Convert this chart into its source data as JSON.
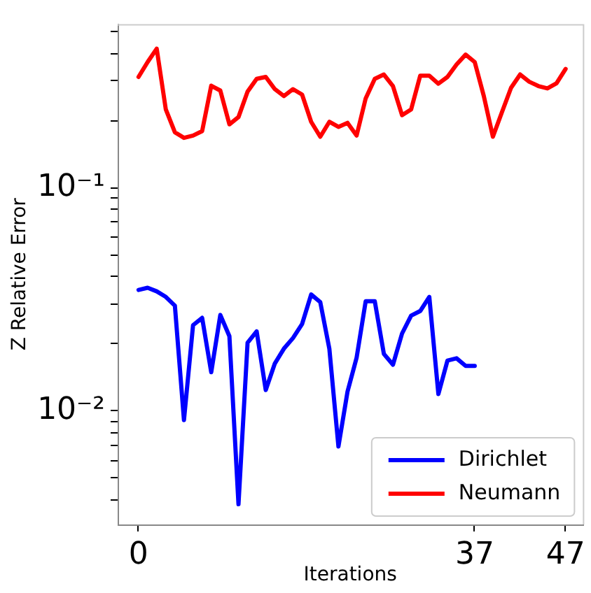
{
  "chart_data": {
    "type": "line",
    "xlabel": "Iterations",
    "ylabel": "Z Relative Error",
    "log": "y",
    "grid": false,
    "legend": "bottom right",
    "marker": "none",
    "line_style": "solid",
    "xlim": [
      -2.3,
      48.9
    ],
    "xticks": [
      0,
      37,
      47
    ],
    "ylim": [
      0.0031,
      0.54
    ],
    "yticks": [
      {
        "value": 0.004,
        "label": null
      },
      {
        "value": 0.005,
        "label": null
      },
      {
        "value": 0.006,
        "label": null
      },
      {
        "value": 0.007,
        "label": null
      },
      {
        "value": 0.008,
        "label": null
      },
      {
        "value": 0.009,
        "label": null
      },
      {
        "value": 0.01,
        "label": "10⁻²"
      },
      {
        "value": 0.02,
        "label": null
      },
      {
        "value": 0.03,
        "label": null
      },
      {
        "value": 0.04,
        "label": null
      },
      {
        "value": 0.05,
        "label": null
      },
      {
        "value": 0.06,
        "label": null
      },
      {
        "value": 0.07,
        "label": null
      },
      {
        "value": 0.08,
        "label": null
      },
      {
        "value": 0.09,
        "label": null
      },
      {
        "value": 0.1,
        "label": "10⁻¹"
      },
      {
        "value": 0.2,
        "label": null
      },
      {
        "value": 0.3,
        "label": null
      },
      {
        "value": 0.4,
        "label": null
      },
      {
        "value": 0.5,
        "label": null
      }
    ],
    "series": [
      {
        "name": "Dirichlet",
        "color": "#0000ff",
        "x": [
          0,
          1,
          2,
          3,
          4,
          5,
          6,
          7,
          8,
          9,
          10,
          11,
          12,
          13,
          14,
          15,
          16,
          17,
          18,
          19,
          20,
          21,
          22,
          23,
          24,
          25,
          26,
          27,
          28,
          29,
          30,
          31,
          32,
          33,
          34,
          35,
          36,
          37
        ],
        "values": [
          0.0348,
          0.0356,
          0.0343,
          0.0324,
          0.0296,
          0.0091,
          0.0242,
          0.0261,
          0.0149,
          0.0269,
          0.0216,
          0.00382,
          0.0202,
          0.0227,
          0.0124,
          0.0163,
          0.019,
          0.0212,
          0.0245,
          0.0332,
          0.0307,
          0.019,
          0.00693,
          0.0122,
          0.0173,
          0.031,
          0.031,
          0.018,
          0.0161,
          0.0222,
          0.0267,
          0.028,
          0.0324,
          0.0119,
          0.0168,
          0.0172,
          0.0159,
          0.0159
        ]
      },
      {
        "name": "Neumann",
        "color": "#ff0000",
        "x": [
          0,
          1,
          2,
          3,
          4,
          5,
          6,
          7,
          8,
          9,
          10,
          11,
          12,
          13,
          14,
          15,
          16,
          17,
          18,
          19,
          20,
          21,
          22,
          23,
          24,
          25,
          26,
          27,
          28,
          29,
          30,
          31,
          32,
          33,
          34,
          35,
          36,
          37,
          38,
          39,
          40,
          41,
          42,
          43,
          44,
          45,
          46,
          47
        ],
        "values": [
          0.313,
          0.365,
          0.419,
          0.224,
          0.177,
          0.167,
          0.171,
          0.179,
          0.286,
          0.272,
          0.192,
          0.207,
          0.269,
          0.307,
          0.313,
          0.276,
          0.257,
          0.276,
          0.261,
          0.197,
          0.169,
          0.197,
          0.187,
          0.195,
          0.171,
          0.251,
          0.307,
          0.321,
          0.285,
          0.211,
          0.224,
          0.317,
          0.317,
          0.292,
          0.313,
          0.356,
          0.394,
          0.365,
          0.257,
          0.169,
          0.218,
          0.28,
          0.321,
          0.298,
          0.285,
          0.278,
          0.293,
          0.34
        ]
      }
    ]
  }
}
